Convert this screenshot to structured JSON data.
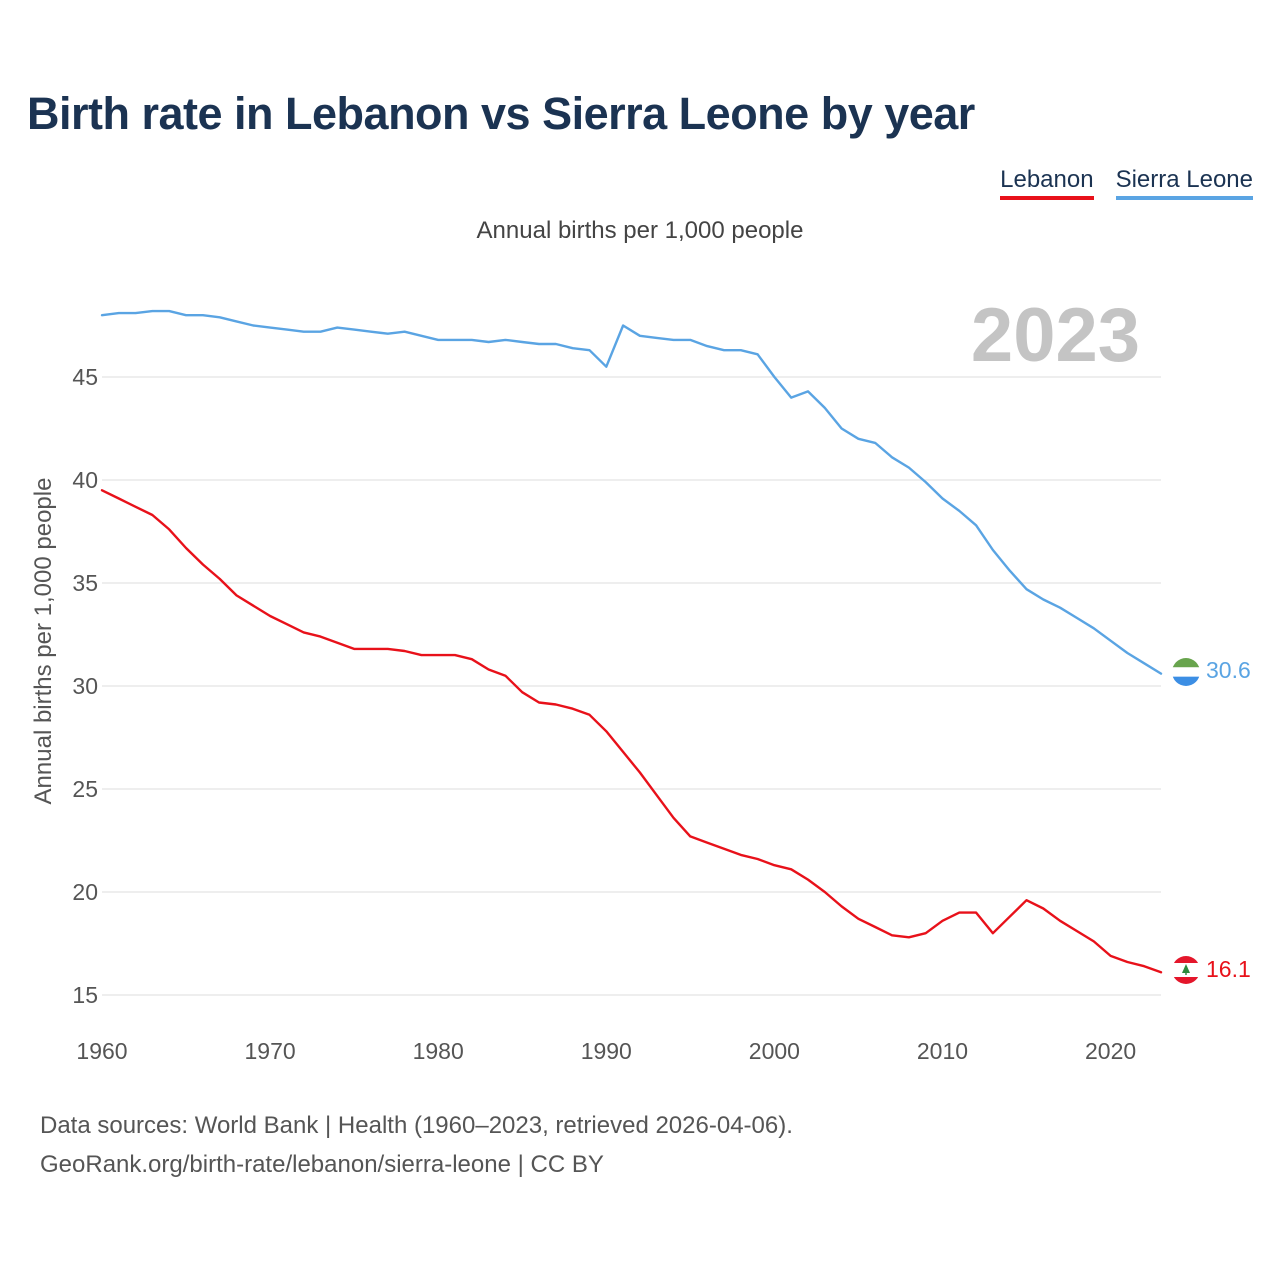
{
  "title": "Birth rate in Lebanon vs Sierra Leone by year",
  "legend": [
    {
      "label": "Lebanon",
      "color": "#e8111a"
    },
    {
      "label": "Sierra Leone",
      "color": "#5aa4e3"
    }
  ],
  "subtitle": "Annual births per 1,000 people",
  "year_label": "2023",
  "footer": {
    "line1": "Data sources: World Bank | Health (1960–2023, retrieved 2026-04-06).",
    "line2": "GeoRank.org/birth-rate/lebanon/sierra-leone | CC BY"
  },
  "chart_data": {
    "type": "line",
    "title": "Birth rate in Lebanon vs Sierra Leone by year",
    "ylabel": "Annual births per 1,000 people",
    "xlabel": "",
    "xlim": [
      1960,
      2023
    ],
    "ylim": [
      13.5,
      48.5
    ],
    "x_ticks": [
      1960,
      1970,
      1980,
      1990,
      2000,
      2010,
      2020
    ],
    "y_ticks": [
      15,
      20,
      25,
      30,
      35,
      40,
      45
    ],
    "grid": true,
    "series": [
      {
        "name": "Sierra Leone",
        "color": "#5aa4e3",
        "end_label": "30.6",
        "x": [
          1960,
          1961,
          1962,
          1963,
          1964,
          1965,
          1966,
          1967,
          1968,
          1969,
          1970,
          1971,
          1972,
          1973,
          1974,
          1975,
          1976,
          1977,
          1978,
          1979,
          1980,
          1981,
          1982,
          1983,
          1984,
          1985,
          1986,
          1987,
          1988,
          1989,
          1990,
          1991,
          1992,
          1993,
          1994,
          1995,
          1996,
          1997,
          1998,
          1999,
          2000,
          2001,
          2002,
          2003,
          2004,
          2005,
          2006,
          2007,
          2008,
          2009,
          2010,
          2011,
          2012,
          2013,
          2014,
          2015,
          2016,
          2017,
          2018,
          2019,
          2020,
          2021,
          2022,
          2023
        ],
        "values": [
          48.0,
          48.1,
          48.1,
          48.2,
          48.2,
          48.0,
          48.0,
          47.9,
          47.7,
          47.5,
          47.4,
          47.3,
          47.2,
          47.2,
          47.4,
          47.3,
          47.2,
          47.1,
          47.2,
          47.0,
          46.8,
          46.8,
          46.8,
          46.7,
          46.8,
          46.7,
          46.6,
          46.6,
          46.4,
          46.3,
          45.5,
          47.5,
          47.0,
          46.9,
          46.8,
          46.8,
          46.5,
          46.3,
          46.3,
          46.1,
          45.0,
          44.0,
          44.3,
          43.5,
          42.5,
          42.0,
          41.8,
          41.1,
          40.6,
          39.9,
          39.1,
          38.5,
          37.8,
          36.6,
          35.6,
          34.7,
          34.2,
          33.8,
          33.3,
          32.8,
          32.2,
          31.6,
          31.1,
          30.6
        ]
      },
      {
        "name": "Lebanon",
        "color": "#e8111a",
        "end_label": "16.1",
        "x": [
          1960,
          1961,
          1962,
          1963,
          1964,
          1965,
          1966,
          1967,
          1968,
          1969,
          1970,
          1971,
          1972,
          1973,
          1974,
          1975,
          1976,
          1977,
          1978,
          1979,
          1980,
          1981,
          1982,
          1983,
          1984,
          1985,
          1986,
          1987,
          1988,
          1989,
          1990,
          1991,
          1992,
          1993,
          1994,
          1995,
          1996,
          1997,
          1998,
          1999,
          2000,
          2001,
          2002,
          2003,
          2004,
          2005,
          2006,
          2007,
          2008,
          2009,
          2010,
          2011,
          2012,
          2013,
          2014,
          2015,
          2016,
          2017,
          2018,
          2019,
          2020,
          2021,
          2022,
          2023
        ],
        "values": [
          39.5,
          39.1,
          38.7,
          38.3,
          37.6,
          36.7,
          35.9,
          35.2,
          34.4,
          33.9,
          33.4,
          33.0,
          32.6,
          32.4,
          32.1,
          31.8,
          31.8,
          31.8,
          31.7,
          31.5,
          31.5,
          31.5,
          31.3,
          30.8,
          30.5,
          29.7,
          29.2,
          29.1,
          28.9,
          28.6,
          27.8,
          26.8,
          25.8,
          24.7,
          23.6,
          22.7,
          22.4,
          22.1,
          21.8,
          21.6,
          21.3,
          21.1,
          20.6,
          20.0,
          19.3,
          18.7,
          18.3,
          17.9,
          17.8,
          18.0,
          18.6,
          19.0,
          19.0,
          18.0,
          18.8,
          19.6,
          19.2,
          18.6,
          18.1,
          17.6,
          16.9,
          16.6,
          16.4,
          16.1
        ]
      }
    ]
  }
}
